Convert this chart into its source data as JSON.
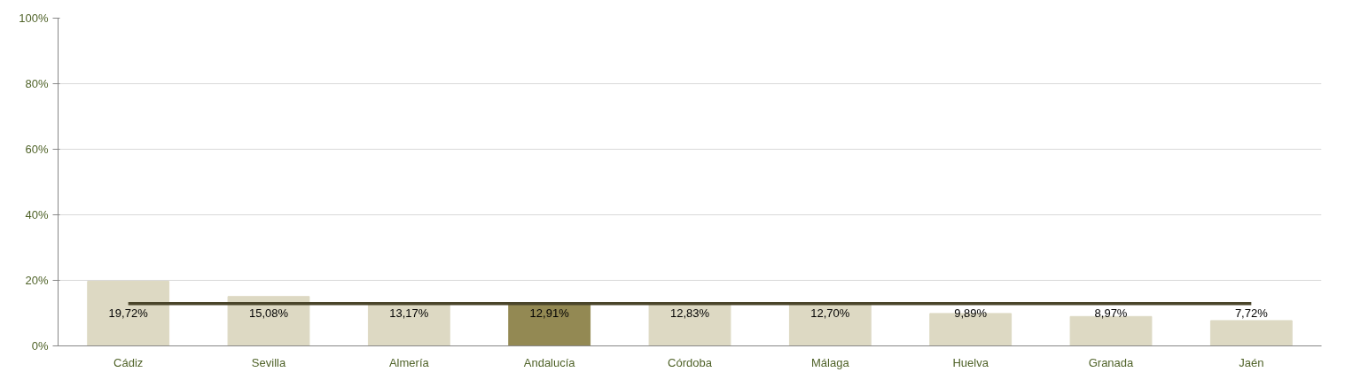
{
  "chart_data": {
    "type": "bar",
    "categories": [
      "Cádiz",
      "Sevilla",
      "Almería",
      "Andalucía",
      "Córdoba",
      "Málaga",
      "Huelva",
      "Granada",
      "Jaén"
    ],
    "series": [
      {
        "colors": [
          "#ddd9c3",
          "#ddd9c3",
          "#ddd9c3",
          "#938953",
          "#ddd9c3",
          "#ddd9c3",
          "#ddd9c3",
          "#ddd9c3",
          "#ddd9c3"
        ],
        "values": [
          19.72,
          15.08,
          13.17,
          12.91,
          12.83,
          12.7,
          9.89,
          8.97,
          7.72
        ],
        "value_labels": [
          "19,72%",
          "15,08%",
          "13,17%",
          "12,91%",
          "12,83%",
          "12,70%",
          "9,89%",
          "8,97%",
          "7,72%"
        ]
      },
      {
        "type": "line",
        "color": "#4a452a",
        "values": [
          12.91,
          12.91,
          12.91,
          12.91,
          12.91,
          12.91,
          12.91,
          12.91,
          12.91
        ]
      }
    ],
    "ylim": [
      0,
      100
    ],
    "yticks": [
      {
        "value": 0,
        "label": "0%"
      },
      {
        "value": 20,
        "label": "20%"
      },
      {
        "value": 40,
        "label": "40%"
      },
      {
        "value": 60,
        "label": "60%"
      },
      {
        "value": 80,
        "label": "80%"
      },
      {
        "value": 100,
        "label": "100%"
      }
    ],
    "grid": "y"
  }
}
